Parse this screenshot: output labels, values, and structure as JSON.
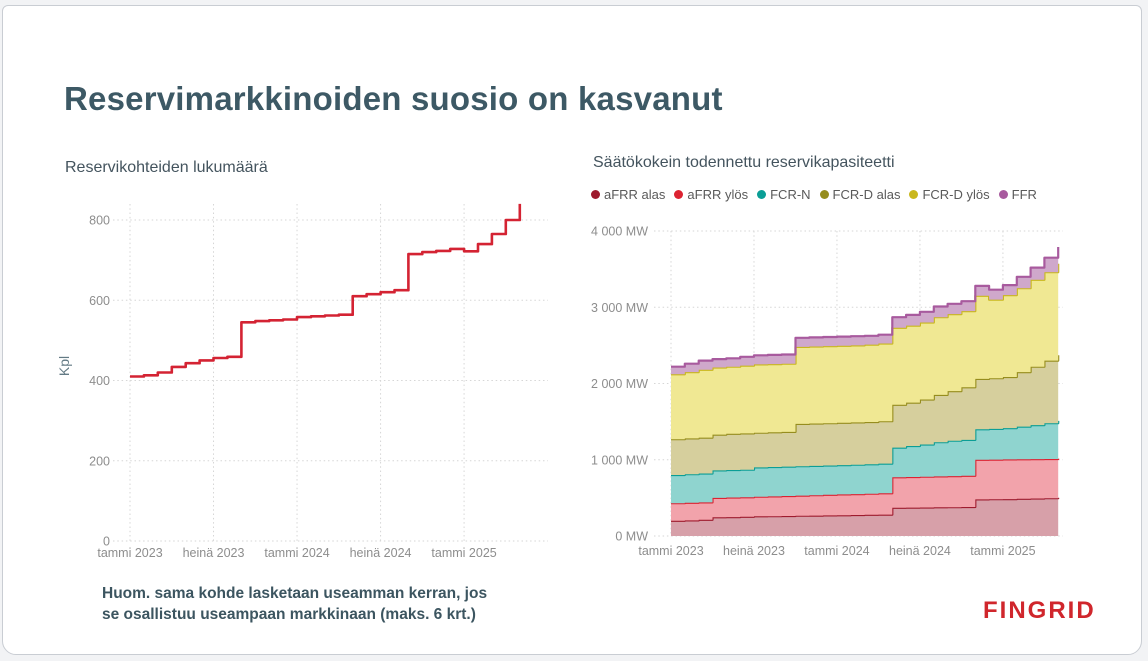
{
  "slide": {
    "title": "Reservimarkkinoiden suosio on kasvanut",
    "title_color": "#3d5965",
    "note_lines": [
      "Huom. sama kohde lasketaan useamman kerran, jos",
      "se osallistuu useampaan markkinaan (maks. 6 krt.)"
    ],
    "logo_text": "FINGRID",
    "logo_color": "#d0262c"
  },
  "chart_data": [
    {
      "type": "line",
      "title": "Reservikohteiden lukumäärä",
      "ylabel": "Kpl",
      "x_start": "tammi 2023",
      "x_interval": "monthly",
      "x_tick_labels": [
        "tammi 2023",
        "heinä 2023",
        "tammi 2024",
        "heinä 2024",
        "tammi 2025"
      ],
      "x_tick_months": [
        0,
        6,
        12,
        18,
        24
      ],
      "y_ticks": [
        0,
        200,
        400,
        600,
        800
      ],
      "y_tick_labels": [
        "0",
        "200",
        "400",
        "600",
        "800"
      ],
      "ylim": [
        0,
        870
      ],
      "grid": "dotted",
      "line_color": "#d42333",
      "values": [
        410,
        413,
        420,
        434,
        443,
        450,
        456,
        459,
        545,
        548,
        550,
        552,
        558,
        560,
        562,
        564,
        610,
        615,
        620,
        625,
        715,
        720,
        723,
        728,
        722,
        740,
        765,
        800,
        840
      ]
    },
    {
      "type": "area",
      "title": "Säätökokein todennettu reservikapasiteetti",
      "unit": "MW",
      "x_start": "tammi 2023",
      "x_interval": "monthly",
      "x_tick_labels": [
        "tammi 2023",
        "heinä 2023",
        "tammi 2024",
        "heinä 2024",
        "tammi 2025"
      ],
      "x_tick_months": [
        0,
        6,
        12,
        18,
        24
      ],
      "y_ticks": [
        0,
        1000,
        2000,
        3000,
        4000
      ],
      "y_tick_labels": [
        "0 MW",
        "1 000 MW",
        "2 000 MW",
        "3 000 MW",
        "4 000 MW"
      ],
      "ylim": [
        0,
        4000
      ],
      "grid": "dotted",
      "stacked": true,
      "legend_position": "top",
      "series": [
        {
          "name": "aFRR alas",
          "color": "#9e1b2e",
          "fill": "#d7a0a9",
          "values": [
            200,
            205,
            212,
            245,
            248,
            252,
            258,
            260,
            262,
            266,
            268,
            270,
            272,
            275,
            278,
            281,
            370,
            372,
            374,
            376,
            378,
            380,
            480,
            482,
            484,
            488,
            492,
            496,
            500
          ]
        },
        {
          "name": "aFRR ylös",
          "color": "#dc2332",
          "fill": "#f2a3ab",
          "values": [
            230,
            230,
            228,
            255,
            257,
            256,
            257,
            260,
            263,
            264,
            267,
            270,
            273,
            275,
            277,
            279,
            400,
            402,
            404,
            406,
            408,
            410,
            520,
            520,
            520,
            518,
            516,
            514,
            512
          ]
        },
        {
          "name": "FCR-N",
          "color": "#0b9e96",
          "fill": "#8fd4cf",
          "values": [
            370,
            375,
            380,
            360,
            360,
            362,
            385,
            385,
            385,
            385,
            385,
            385,
            385,
            385,
            385,
            390,
            390,
            406,
            422,
            448,
            464,
            470,
            400,
            403,
            411,
            429,
            447,
            470,
            498
          ]
        },
        {
          "name": "FCR-D alas",
          "color": "#968d1e",
          "fill": "#d6cf9d",
          "values": [
            470,
            470,
            470,
            470,
            475,
            475,
            455,
            455,
            455,
            555,
            555,
            555,
            555,
            555,
            555,
            555,
            560,
            570,
            590,
            620,
            650,
            690,
            660,
            665,
            670,
            715,
            765,
            820,
            860
          ]
        },
        {
          "name": "FCR-D ylös",
          "color": "#c9b71d",
          "fill": "#f0e893",
          "values": [
            850,
            870,
            890,
            880,
            880,
            890,
            895,
            895,
            895,
            1010,
            1010,
            1010,
            1010,
            1010,
            1015,
            1020,
            1010,
            1010,
            1010,
            1020,
            1010,
            1000,
            1090,
            1030,
            1075,
            1100,
            1140,
            1160,
            1200
          ]
        },
        {
          "name": "FFR",
          "color": "#a85a9e",
          "fill": "#cfa8cb",
          "values": [
            100,
            110,
            120,
            110,
            110,
            115,
            120,
            120,
            120,
            120,
            120,
            120,
            120,
            120,
            115,
            115,
            140,
            140,
            140,
            140,
            135,
            130,
            130,
            130,
            130,
            150,
            160,
            190,
            220
          ]
        }
      ]
    }
  ]
}
